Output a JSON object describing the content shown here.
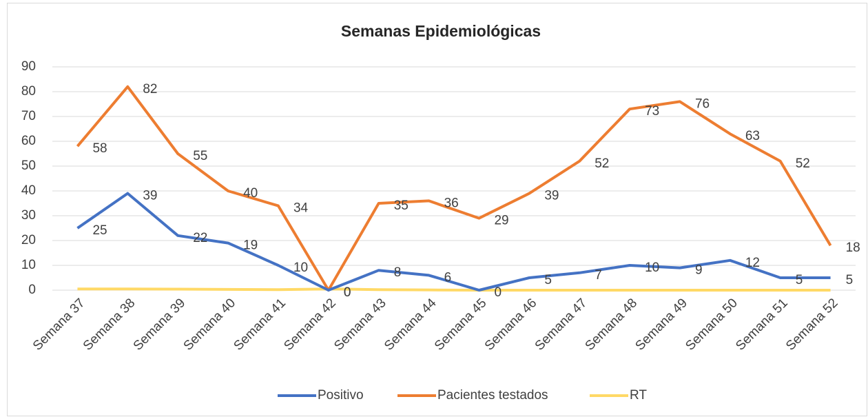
{
  "chart_data": {
    "type": "line",
    "title": "Semanas Epidemiológicas",
    "categories": [
      "Semana 37",
      "Semana 38",
      "Semana 39",
      "Semana 40",
      "Semana 41",
      "Semana 42",
      "Semana 43",
      "Semana 44",
      "Semana 45",
      "Semana 46",
      "Semana 47",
      "Semana 48",
      "Semana 49",
      "Semana 50",
      "Semana 51",
      "Semana 52"
    ],
    "series": [
      {
        "name": "Positivo",
        "color": "#4472c4",
        "values": [
          25,
          39,
          22,
          19,
          10,
          0,
          8,
          6,
          0,
          5,
          7,
          10,
          9,
          12,
          5,
          5
        ],
        "labels": true
      },
      {
        "name": "Pacientes testados",
        "color": "#ed7d31",
        "values": [
          58,
          82,
          55,
          40,
          34,
          0,
          35,
          36,
          29,
          39,
          52,
          73,
          76,
          63,
          52,
          18
        ],
        "labels": true
      },
      {
        "name": "RT",
        "color": "#ffd966",
        "values": [
          0.5,
          0.5,
          0.4,
          0.3,
          0.2,
          0.5,
          0.2,
          0.1,
          0,
          0,
          0,
          0,
          0,
          0,
          0,
          0
        ],
        "labels": false
      }
    ],
    "ylim": [
      0,
      90
    ],
    "yticks": [
      0,
      10,
      20,
      30,
      40,
      50,
      60,
      70,
      80,
      90
    ],
    "grid": true,
    "legend": "bottom"
  }
}
